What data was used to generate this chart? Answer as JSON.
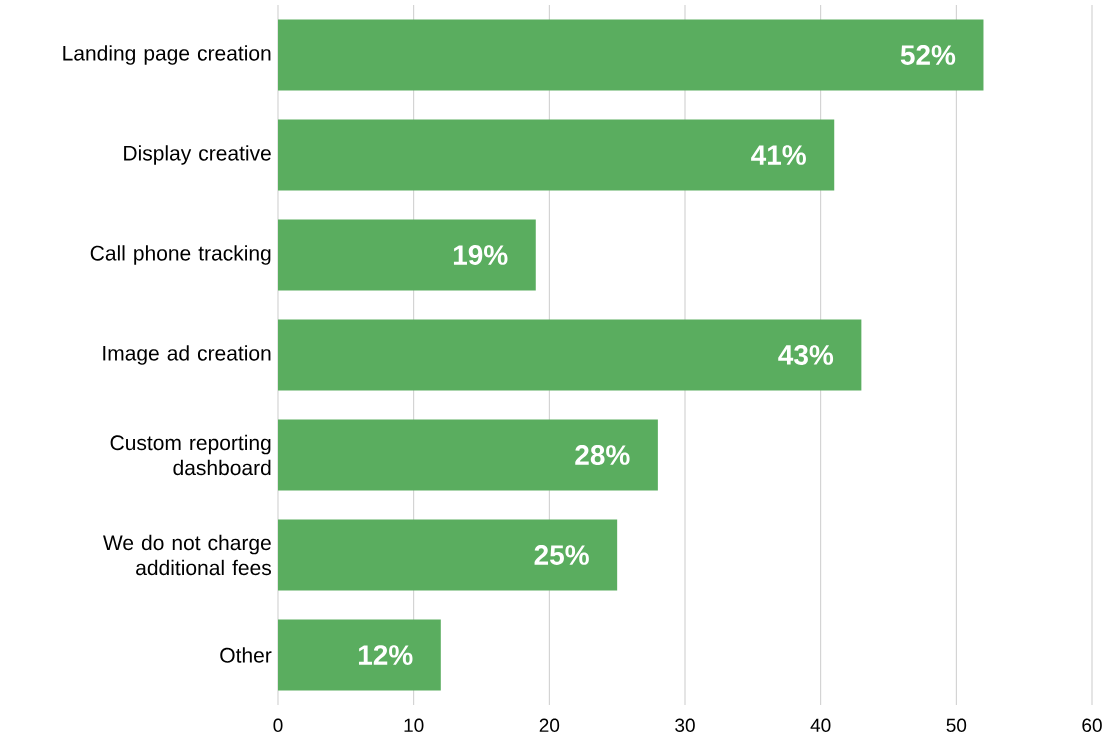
{
  "chart_data": {
    "type": "bar",
    "orientation": "horizontal",
    "categories": [
      "Landing page creation",
      "Display creative",
      "Call phone tracking",
      "Image ad creation",
      "Custom reporting dashboard",
      "We do not charge additional fees",
      "Other"
    ],
    "values": [
      52,
      41,
      19,
      43,
      28,
      25,
      12
    ],
    "value_labels": [
      "52%",
      "41%",
      "19%",
      "43%",
      "28%",
      "25%",
      "12%"
    ],
    "color": "#5aad5f",
    "xlim": [
      0,
      60
    ],
    "xticks": [
      0,
      10,
      20,
      30,
      40,
      50,
      60
    ],
    "grid": "x"
  }
}
